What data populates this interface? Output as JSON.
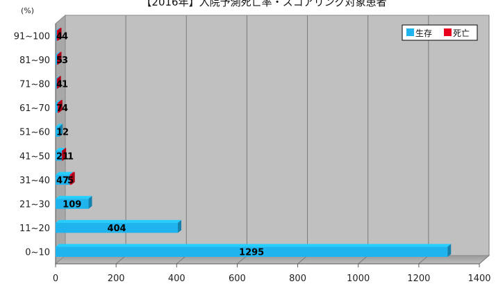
{
  "chart_data": {
    "type": "bar",
    "orientation": "horizontal",
    "title": "【2016年】入院予測死亡率・スコアリング対象患者",
    "ylabel": "(%)",
    "categories": [
      "0~10",
      "11~20",
      "21~30",
      "31~40",
      "41~50",
      "51~60",
      "61~70",
      "71~80",
      "81~90",
      "91~100"
    ],
    "series": [
      {
        "name": "生存",
        "color": "#1fb4ee",
        "values": [
          1295,
          404,
          109,
          47,
          21,
          12,
          7,
          4,
          5,
          4
        ]
      },
      {
        "name": "死亡",
        "color": "#e8001c",
        "values": [
          0,
          0,
          0,
          5,
          1,
          0,
          4,
          1,
          3,
          4
        ]
      }
    ],
    "xlim": [
      0,
      1400
    ],
    "xticks": [
      0,
      200,
      400,
      600,
      800,
      1000,
      1200,
      1400
    ],
    "grid": true,
    "legend": "top-right",
    "stacked": true
  }
}
